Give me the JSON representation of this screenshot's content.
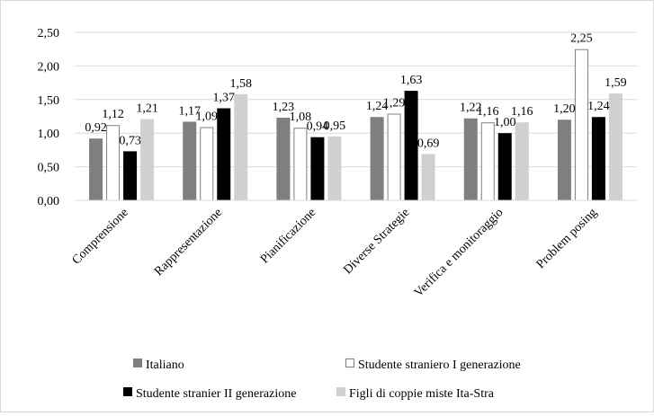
{
  "chart_data": {
    "type": "bar",
    "title": "",
    "xlabel": "",
    "ylabel": "",
    "ylim": [
      0,
      2.5
    ],
    "yticks": [
      "0,00",
      "0,50",
      "1,00",
      "1,50",
      "2,00",
      "2,50"
    ],
    "grid": true,
    "legend_position": "bottom",
    "categories": [
      "Comprensione",
      "Rappresentazione",
      "Pianificazione",
      "Diverse Strategie",
      "Verifica e monitoraggio",
      "Problem posing"
    ],
    "series": [
      {
        "name": "Italiano",
        "values": [
          0.92,
          1.17,
          1.23,
          1.24,
          1.22,
          1.2
        ],
        "labels": [
          "0,92",
          "1,17",
          "1,23",
          "1,24",
          "1,22",
          "1,20"
        ],
        "fill": "#7f7f7f",
        "stroke": "#7f7f7f"
      },
      {
        "name": "Studente straniero I generazione",
        "values": [
          1.12,
          1.09,
          1.08,
          1.29,
          1.16,
          2.25
        ],
        "labels": [
          "1,12",
          "1,09",
          "1,08",
          "1,29",
          "1,16",
          "2,25"
        ],
        "fill": "#ffffff",
        "stroke": "#7f7f7f"
      },
      {
        "name": "Studente stranier II generazione",
        "values": [
          0.73,
          1.37,
          0.94,
          1.63,
          1.0,
          1.24
        ],
        "labels": [
          "0,73",
          "1,37",
          "0,94",
          "1,63",
          "1,00",
          "1,24"
        ],
        "fill": "#000000",
        "stroke": "#000000"
      },
      {
        "name": "Figli di coppie miste Ita-Stra",
        "values": [
          1.21,
          1.58,
          0.95,
          0.69,
          1.16,
          1.59
        ],
        "labels": [
          "1,21",
          "1,58",
          "0,95",
          "0,69",
          "1,16",
          "1,59"
        ],
        "fill": "#d0d0d0",
        "stroke": "#d0d0d0"
      }
    ]
  }
}
